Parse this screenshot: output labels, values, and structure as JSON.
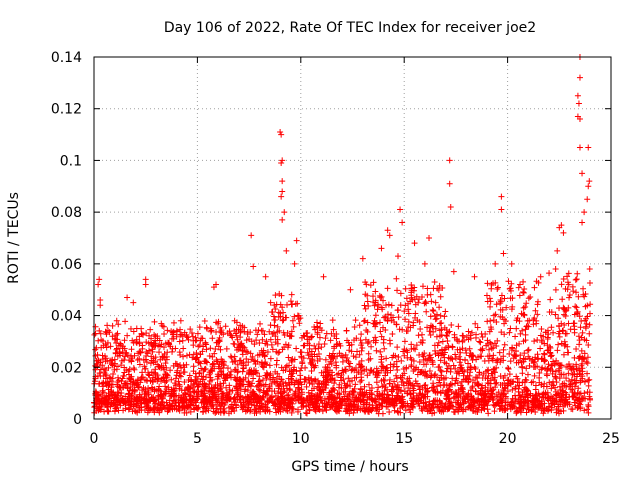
{
  "chart_data": {
    "type": "scatter",
    "title": "Day 106 of 2022, Rate Of TEC Index for receiver joe2",
    "xlabel": "GPS time / hours",
    "ylabel": "ROTI / TECUs",
    "xlim": [
      0,
      25
    ],
    "ylim": [
      0,
      0.14
    ],
    "x_ticks": [
      0,
      5,
      10,
      15,
      20,
      25
    ],
    "y_ticks": [
      0,
      0.02,
      0.04,
      0.06,
      0.08,
      0.1,
      0.12,
      0.14
    ],
    "x_tick_labels": [
      "0",
      "5",
      "10",
      "15",
      "20",
      "25"
    ],
    "y_tick_labels": [
      "0",
      "0.02",
      "0.04",
      "0.06",
      "0.08",
      "0.1",
      "0.12",
      "0.14"
    ],
    "grid": true,
    "marker": "+",
    "color": "#ff0000",
    "series": [
      {
        "name": "ROTI",
        "points": [
          [
            0.2,
            0.052
          ],
          [
            0.25,
            0.054
          ],
          [
            0.3,
            0.046
          ],
          [
            0.3,
            0.044
          ],
          [
            0.9,
            0.036
          ],
          [
            1.1,
            0.038
          ],
          [
            1.6,
            0.047
          ],
          [
            1.9,
            0.045
          ],
          [
            2.5,
            0.054
          ],
          [
            2.5,
            0.052
          ],
          [
            3.3,
            0.036
          ],
          [
            4.2,
            0.038
          ],
          [
            5.9,
            0.052
          ],
          [
            5.8,
            0.051
          ],
          [
            6.8,
            0.038
          ],
          [
            7.6,
            0.071
          ],
          [
            7.7,
            0.059
          ],
          [
            8.3,
            0.055
          ],
          [
            9.0,
            0.111
          ],
          [
            9.05,
            0.11
          ],
          [
            9.1,
            0.1
          ],
          [
            9.05,
            0.099
          ],
          [
            9.1,
            0.092
          ],
          [
            9.1,
            0.088
          ],
          [
            9.05,
            0.086
          ],
          [
            9.2,
            0.08
          ],
          [
            9.1,
            0.077
          ],
          [
            9.3,
            0.065
          ],
          [
            9.8,
            0.069
          ],
          [
            9.7,
            0.06
          ],
          [
            11.1,
            0.055
          ],
          [
            12.4,
            0.05
          ],
          [
            13.0,
            0.062
          ],
          [
            13.9,
            0.066
          ],
          [
            14.2,
            0.073
          ],
          [
            14.3,
            0.071
          ],
          [
            14.8,
            0.081
          ],
          [
            14.9,
            0.076
          ],
          [
            14.7,
            0.063
          ],
          [
            15.5,
            0.068
          ],
          [
            16.2,
            0.07
          ],
          [
            16.0,
            0.06
          ],
          [
            17.2,
            0.1
          ],
          [
            17.2,
            0.091
          ],
          [
            17.25,
            0.082
          ],
          [
            17.4,
            0.057
          ],
          [
            18.4,
            0.055
          ],
          [
            19.4,
            0.06
          ],
          [
            19.7,
            0.086
          ],
          [
            19.7,
            0.081
          ],
          [
            19.8,
            0.064
          ],
          [
            20.2,
            0.06
          ],
          [
            20.6,
            0.052
          ],
          [
            21.6,
            0.055
          ],
          [
            22.5,
            0.074
          ],
          [
            22.6,
            0.075
          ],
          [
            22.7,
            0.072
          ],
          [
            22.4,
            0.065
          ],
          [
            23.5,
            0.14
          ],
          [
            23.5,
            0.132
          ],
          [
            23.4,
            0.125
          ],
          [
            23.45,
            0.122
          ],
          [
            23.4,
            0.117
          ],
          [
            23.5,
            0.116
          ],
          [
            23.5,
            0.105
          ],
          [
            23.9,
            0.105
          ],
          [
            23.6,
            0.095
          ],
          [
            23.95,
            0.092
          ],
          [
            23.9,
            0.09
          ],
          [
            23.85,
            0.085
          ],
          [
            23.7,
            0.08
          ],
          [
            23.6,
            0.076
          ]
        ]
      }
    ]
  }
}
